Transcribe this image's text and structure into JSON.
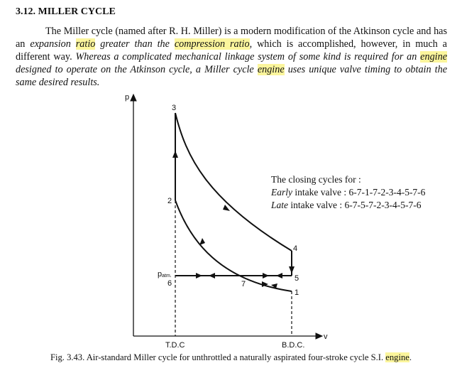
{
  "section": {
    "heading": "3.12. MILLER CYCLE"
  },
  "paragraph": {
    "p1": "The Miller cycle (named after R. H. Miller) is a modern modification of the Atkinson cycle and has an ",
    "p2": "expansion ",
    "p3": "ratio",
    "p4": " greater than the ",
    "p5": "compression ratio",
    "p6": ", which is accomplished, however, in much a different way. ",
    "p7": "Whereas a complicated mechanical linkage system of some kind is required for an ",
    "p8": "engine",
    "p9": " designed to operate on the Atkinson cycle, a Miller cycle ",
    "p10": "engine",
    "p11": " uses unique valve timing to obtain the same desired results."
  },
  "diagram": {
    "y_axis": "p",
    "x_axis": "v",
    "points": {
      "p1": "1",
      "p2": "2",
      "p3": "3",
      "p4": "4",
      "p5": "5",
      "p6": "6",
      "p7": "7"
    },
    "patm": "p",
    "patm_sub": "atm.",
    "tdc": "T.D.C",
    "bdc": "B.D.C.",
    "note_title": "The closing cycles for :",
    "early_label": "Early",
    "early_text": " intake valve : 6-7-1-7-2-3-4-5-7-6",
    "late_label": "Late",
    "late_text": " intake valve : 6-7-5-7-2-3-4-5-7-6"
  },
  "caption": {
    "text": "Fig. 3.43. Air-standard Miller cycle for unthrottled a naturally aspirated four-stroke cycle S.I. ",
    "highlight": "engine",
    "end": "."
  },
  "colors": {
    "highlight": "#fbf59c",
    "ink": "#111111"
  }
}
